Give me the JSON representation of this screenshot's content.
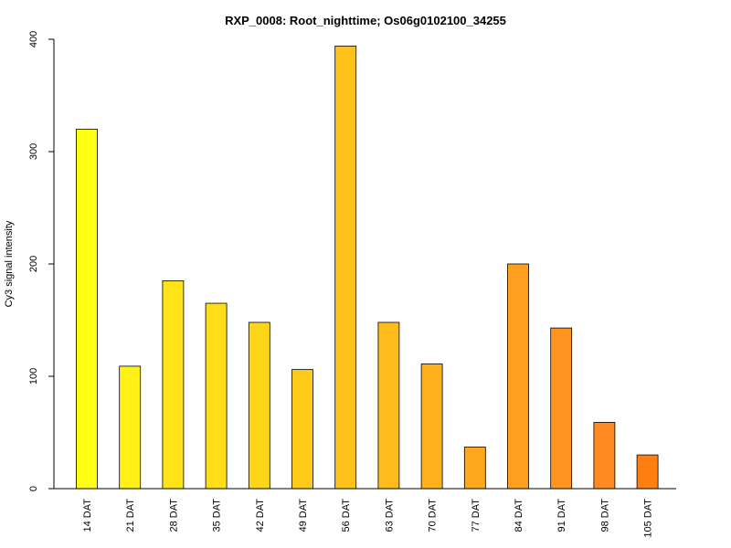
{
  "chart_data": {
    "type": "bar",
    "title": "RXP_0008: Root_nighttime; Os06g0102100_34255",
    "xlabel": "",
    "ylabel": "Cy3 signal intensity",
    "ylim": [
      0,
      400
    ],
    "yticks": [
      0,
      100,
      200,
      300,
      400
    ],
    "categories": [
      "14 DAT",
      "21 DAT",
      "28 DAT",
      "35 DAT",
      "42 DAT",
      "49 DAT",
      "56 DAT",
      "63 DAT",
      "70 DAT",
      "77 DAT",
      "84 DAT",
      "91 DAT",
      "98 DAT",
      "105 DAT"
    ],
    "values": [
      320,
      109,
      185,
      165,
      148,
      106,
      394,
      148,
      111,
      37,
      200,
      143,
      59,
      30
    ],
    "colors": [
      "#ffff14",
      "#fff015",
      "#ffe317",
      "#ffdd18",
      "#ffd519",
      "#ffcb1a",
      "#ffc21b",
      "#ffba1c",
      "#ffb01d",
      "#ffa81e",
      "#ff9f1f",
      "#ff9420",
      "#ff8a22",
      "#ff7f10"
    ],
    "grid": false,
    "legend": "none"
  }
}
